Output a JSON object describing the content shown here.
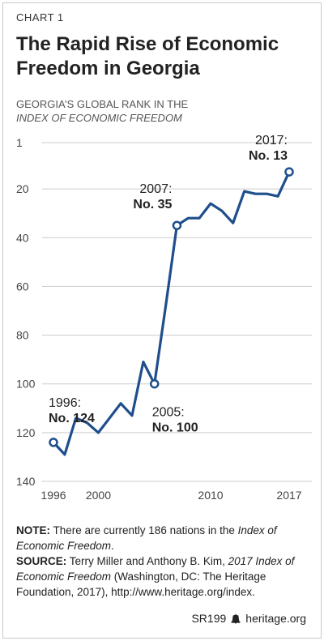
{
  "chart_label": "CHART 1",
  "title": "The Rapid Rise of Economic Freedom in Georgia",
  "subtitle_line1": "GEORGIA’S GLOBAL RANK IN THE",
  "subtitle_line2": "INDEX OF ECONOMIC FREEDOM",
  "note": {
    "label": "NOTE:",
    "text_before": " There are currently 186 nations in the ",
    "italic": "Index of Economic Freedom",
    "text_after": "."
  },
  "source": {
    "label": "SOURCE:",
    "text_before": " Terry Miller and Anthony B. Kim, ",
    "italic": "2017 Index of Economic Freedom",
    "text_after": " (Washington, DC: The Heritage Foundation, 2017), http://www.heritage.org/index."
  },
  "footer": {
    "code": "SR199",
    "site": "heritage.org"
  },
  "colors": {
    "line": "#1f4e8c",
    "grid": "#cccccc",
    "axis_text": "#444444"
  },
  "chart_data": {
    "type": "line",
    "ylabel": "",
    "xlabel": "",
    "x_ticks": [
      1996,
      2000,
      2010,
      2017
    ],
    "y_ticks": [
      1,
      20,
      40,
      60,
      80,
      100,
      120,
      140
    ],
    "ylim": [
      1,
      140
    ],
    "xlim": [
      1996,
      2017
    ],
    "y_inverted": true,
    "grid": "horizontal",
    "series": [
      {
        "x": [
          1996,
          1997,
          1998,
          1999,
          2000,
          2001,
          2002,
          2003,
          2004,
          2005,
          2006,
          2007,
          2008,
          2009,
          2010,
          2011,
          2012,
          2013,
          2014,
          2015,
          2016,
          2017
        ],
        "values": [
          124,
          129,
          114,
          116,
          120,
          114,
          108,
          113,
          91,
          100,
          68,
          35,
          32,
          32,
          26,
          29,
          34,
          21,
          22,
          22,
          23,
          13
        ]
      }
    ],
    "highlighted_points": [
      {
        "x": 1996,
        "y": 124,
        "year_label": "1996:",
        "rank_label": "No. 124"
      },
      {
        "x": 2005,
        "y": 100,
        "year_label": "2005:",
        "rank_label": "No. 100"
      },
      {
        "x": 2007,
        "y": 35,
        "year_label": "2007:",
        "rank_label": "No. 35"
      },
      {
        "x": 2017,
        "y": 13,
        "year_label": "2017:",
        "rank_label": "No. 13"
      }
    ]
  }
}
